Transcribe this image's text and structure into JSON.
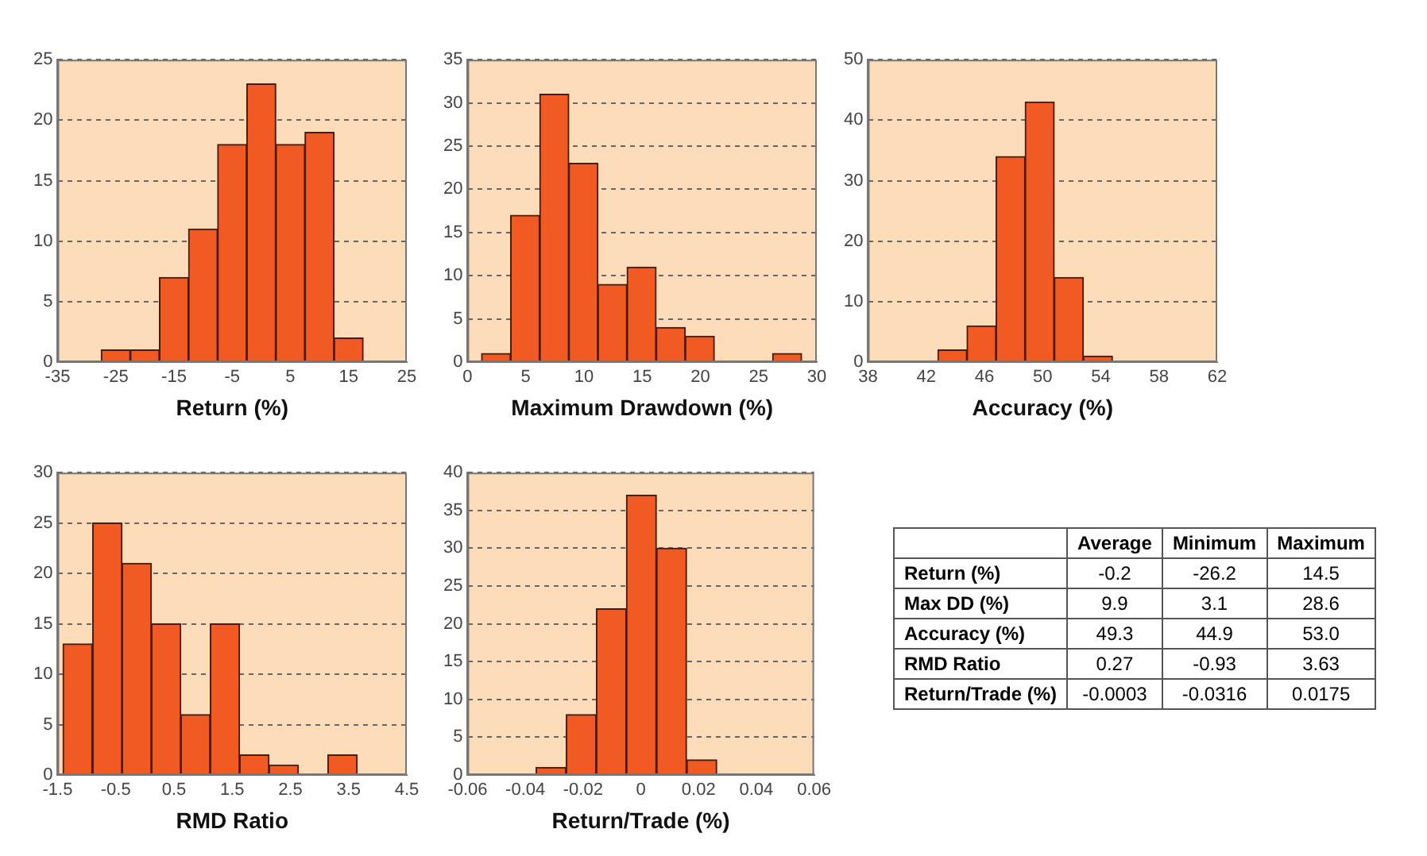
{
  "chart_data": [
    {
      "type": "histogram",
      "xlabel": "Return (%)",
      "bins": [
        -32.5,
        -27.5,
        -22.5,
        -17.5,
        -12.5,
        -7.5,
        -2.5,
        2.5,
        7.5,
        12.5,
        17.5
      ],
      "values": [
        0,
        1,
        1,
        7,
        11,
        18,
        23,
        18,
        19,
        2
      ],
      "color": "#f15a22",
      "xlim": [
        -35,
        25
      ],
      "xticks": [
        -35,
        -25,
        -15,
        -5,
        5,
        15,
        25
      ],
      "ylim": [
        0,
        25
      ],
      "yticks": [
        0,
        5,
        10,
        15,
        20,
        25
      ],
      "grid": "y"
    },
    {
      "type": "histogram",
      "xlabel": "Maximum Drawdown (%)",
      "bins": [
        1.2,
        3.7,
        6.2,
        8.7,
        11.2,
        13.7,
        16.2,
        18.7,
        21.2,
        23.7,
        26.2,
        28.7
      ],
      "values": [
        1,
        17,
        31,
        23,
        9,
        11,
        4,
        3,
        0,
        0,
        1
      ],
      "color": "#f15a22",
      "xlim": [
        0,
        30
      ],
      "xticks": [
        0,
        5,
        10,
        15,
        20,
        25,
        30
      ],
      "ylim": [
        0,
        35
      ],
      "yticks": [
        0,
        5,
        10,
        15,
        20,
        25,
        30,
        35
      ],
      "grid": "y"
    },
    {
      "type": "histogram",
      "xlabel": "Accuracy (%)",
      "bins": [
        42.8,
        44.8,
        46.8,
        48.8,
        50.8,
        52.8,
        54.8
      ],
      "values": [
        2,
        6,
        34,
        43,
        14,
        1
      ],
      "color": "#f15a22",
      "xlim": [
        38,
        62
      ],
      "xticks": [
        38,
        42,
        46,
        50,
        54,
        58,
        62
      ],
      "ylim": [
        0,
        50
      ],
      "yticks": [
        0,
        10,
        20,
        30,
        40,
        50
      ],
      "grid": "y"
    },
    {
      "type": "histogram",
      "xlabel": "RMD Ratio",
      "bins": [
        -1.41,
        -0.9,
        -0.39,
        0.11,
        0.62,
        1.12,
        1.63,
        2.13,
        2.64,
        3.14,
        3.65
      ],
      "values": [
        13,
        25,
        21,
        15,
        6,
        15,
        2,
        1,
        0,
        2
      ],
      "color": "#f15a22",
      "xlim": [
        -1.5,
        4.5
      ],
      "xticks": [
        -1.5,
        -0.5,
        0.5,
        1.5,
        2.5,
        3.5,
        4.5
      ],
      "ylim": [
        0,
        30
      ],
      "yticks": [
        0,
        5,
        10,
        15,
        20,
        25,
        30
      ],
      "grid": "y"
    },
    {
      "type": "histogram",
      "xlabel": "Return/Trade (%)",
      "bins": [
        -0.0363,
        -0.0259,
        -0.0154,
        -0.005,
        0.0054,
        0.0159,
        0.0263
      ],
      "values": [
        1,
        8,
        22,
        37,
        30,
        2
      ],
      "color": "#f15a22",
      "xlim": [
        -0.06,
        0.06
      ],
      "xticks": [
        -0.06,
        -0.04,
        -0.02,
        0,
        0.02,
        0.04,
        0.06
      ],
      "ylim": [
        0,
        40
      ],
      "yticks": [
        0,
        5,
        10,
        15,
        20,
        25,
        30,
        35,
        40
      ],
      "grid": "y"
    },
    {
      "type": "other",
      "categories": [
        "Return (%)",
        "Max DD (%)",
        "Accuracy (%)",
        "RMD Ratio",
        "Return/Trade (%)"
      ],
      "series": [
        {
          "name": "Average",
          "values": [
            -0.2,
            9.9,
            49.3,
            0.27,
            -0.0003
          ],
          "value_labels": [
            "-0.2",
            "9.9",
            "49.3",
            "0.27",
            "-0.0003"
          ]
        },
        {
          "name": "Minimum",
          "values": [
            -26.2,
            3.1,
            44.9,
            -0.93,
            -0.0316
          ],
          "value_labels": [
            "-26.2",
            "3.1",
            "44.9",
            "-0.93",
            "-0.0316"
          ]
        },
        {
          "name": "Maximum",
          "values": [
            14.5,
            28.6,
            53.0,
            3.63,
            0.0175
          ],
          "value_labels": [
            "14.5",
            "28.6",
            "53.0",
            "3.63",
            "0.0175"
          ]
        }
      ]
    }
  ]
}
